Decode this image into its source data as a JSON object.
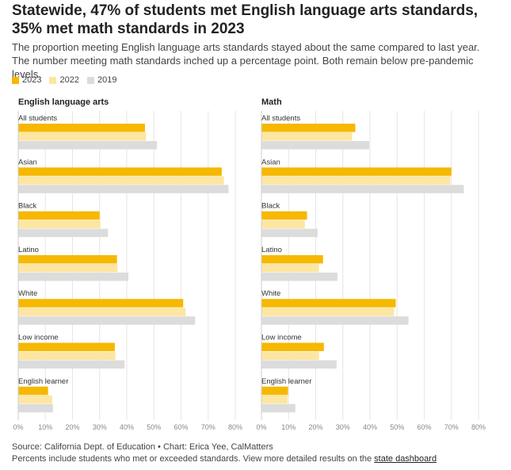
{
  "title": "Statewide, 47% of students met English language arts standards, 35% met math standards in 2023",
  "subtitle": "The proportion meeting English language arts standards stayed about the same compared to last year. The number meeting math standards inched up a percentage point. Both remain below pre-pandemic levels.",
  "colors": {
    "2023": "#f6b800",
    "2022": "#fde6a2",
    "2019": "#dcdcdc"
  },
  "legend": [
    "2023",
    "2022",
    "2019"
  ],
  "chart_data": [
    {
      "type": "bar",
      "title": "English language arts",
      "categories": [
        "All students",
        "Asian",
        "Black",
        "Latino",
        "White",
        "Low income",
        "English learner"
      ],
      "series": [
        {
          "name": "2023",
          "values": [
            46.7,
            75,
            30,
            36.4,
            60.8,
            35.6,
            11
          ]
        },
        {
          "name": "2022",
          "values": [
            47.1,
            75.8,
            30.3,
            36.6,
            61.7,
            35.8,
            12.5
          ]
        },
        {
          "name": "2019",
          "values": [
            51.1,
            77.5,
            33.1,
            40.6,
            65.2,
            39.2,
            12.8
          ]
        }
      ],
      "xlim": [
        0,
        80
      ],
      "xticks": [
        "0%",
        "10%",
        "20%",
        "30%",
        "40%",
        "50%",
        "60%",
        "70%",
        "80%"
      ]
    },
    {
      "type": "bar",
      "title": "Math",
      "categories": [
        "All students",
        "Asian",
        "Black",
        "Latino",
        "White",
        "Low income",
        "English learner"
      ],
      "series": [
        {
          "name": "2023",
          "values": [
            34.6,
            70,
            16.8,
            22.7,
            49.5,
            23,
            9.8
          ]
        },
        {
          "name": "2022",
          "values": [
            33.4,
            69.6,
            16,
            21.2,
            48.9,
            21.2,
            9.6
          ]
        },
        {
          "name": "2019",
          "values": [
            39.7,
            74.6,
            20.7,
            28,
            54.2,
            27.7,
            12.5
          ]
        }
      ],
      "xlim": [
        0,
        80
      ],
      "xticks": [
        "0%",
        "10%",
        "20%",
        "30%",
        "40%",
        "50%",
        "60%",
        "70%",
        "80%"
      ]
    }
  ],
  "footer": {
    "source": "Source: California Dept. of Education • Chart: Erica Yee, CalMatters",
    "note": "Percents include students who met or exceeded standards. View more detailed results on the ",
    "link": "state dashboard"
  }
}
